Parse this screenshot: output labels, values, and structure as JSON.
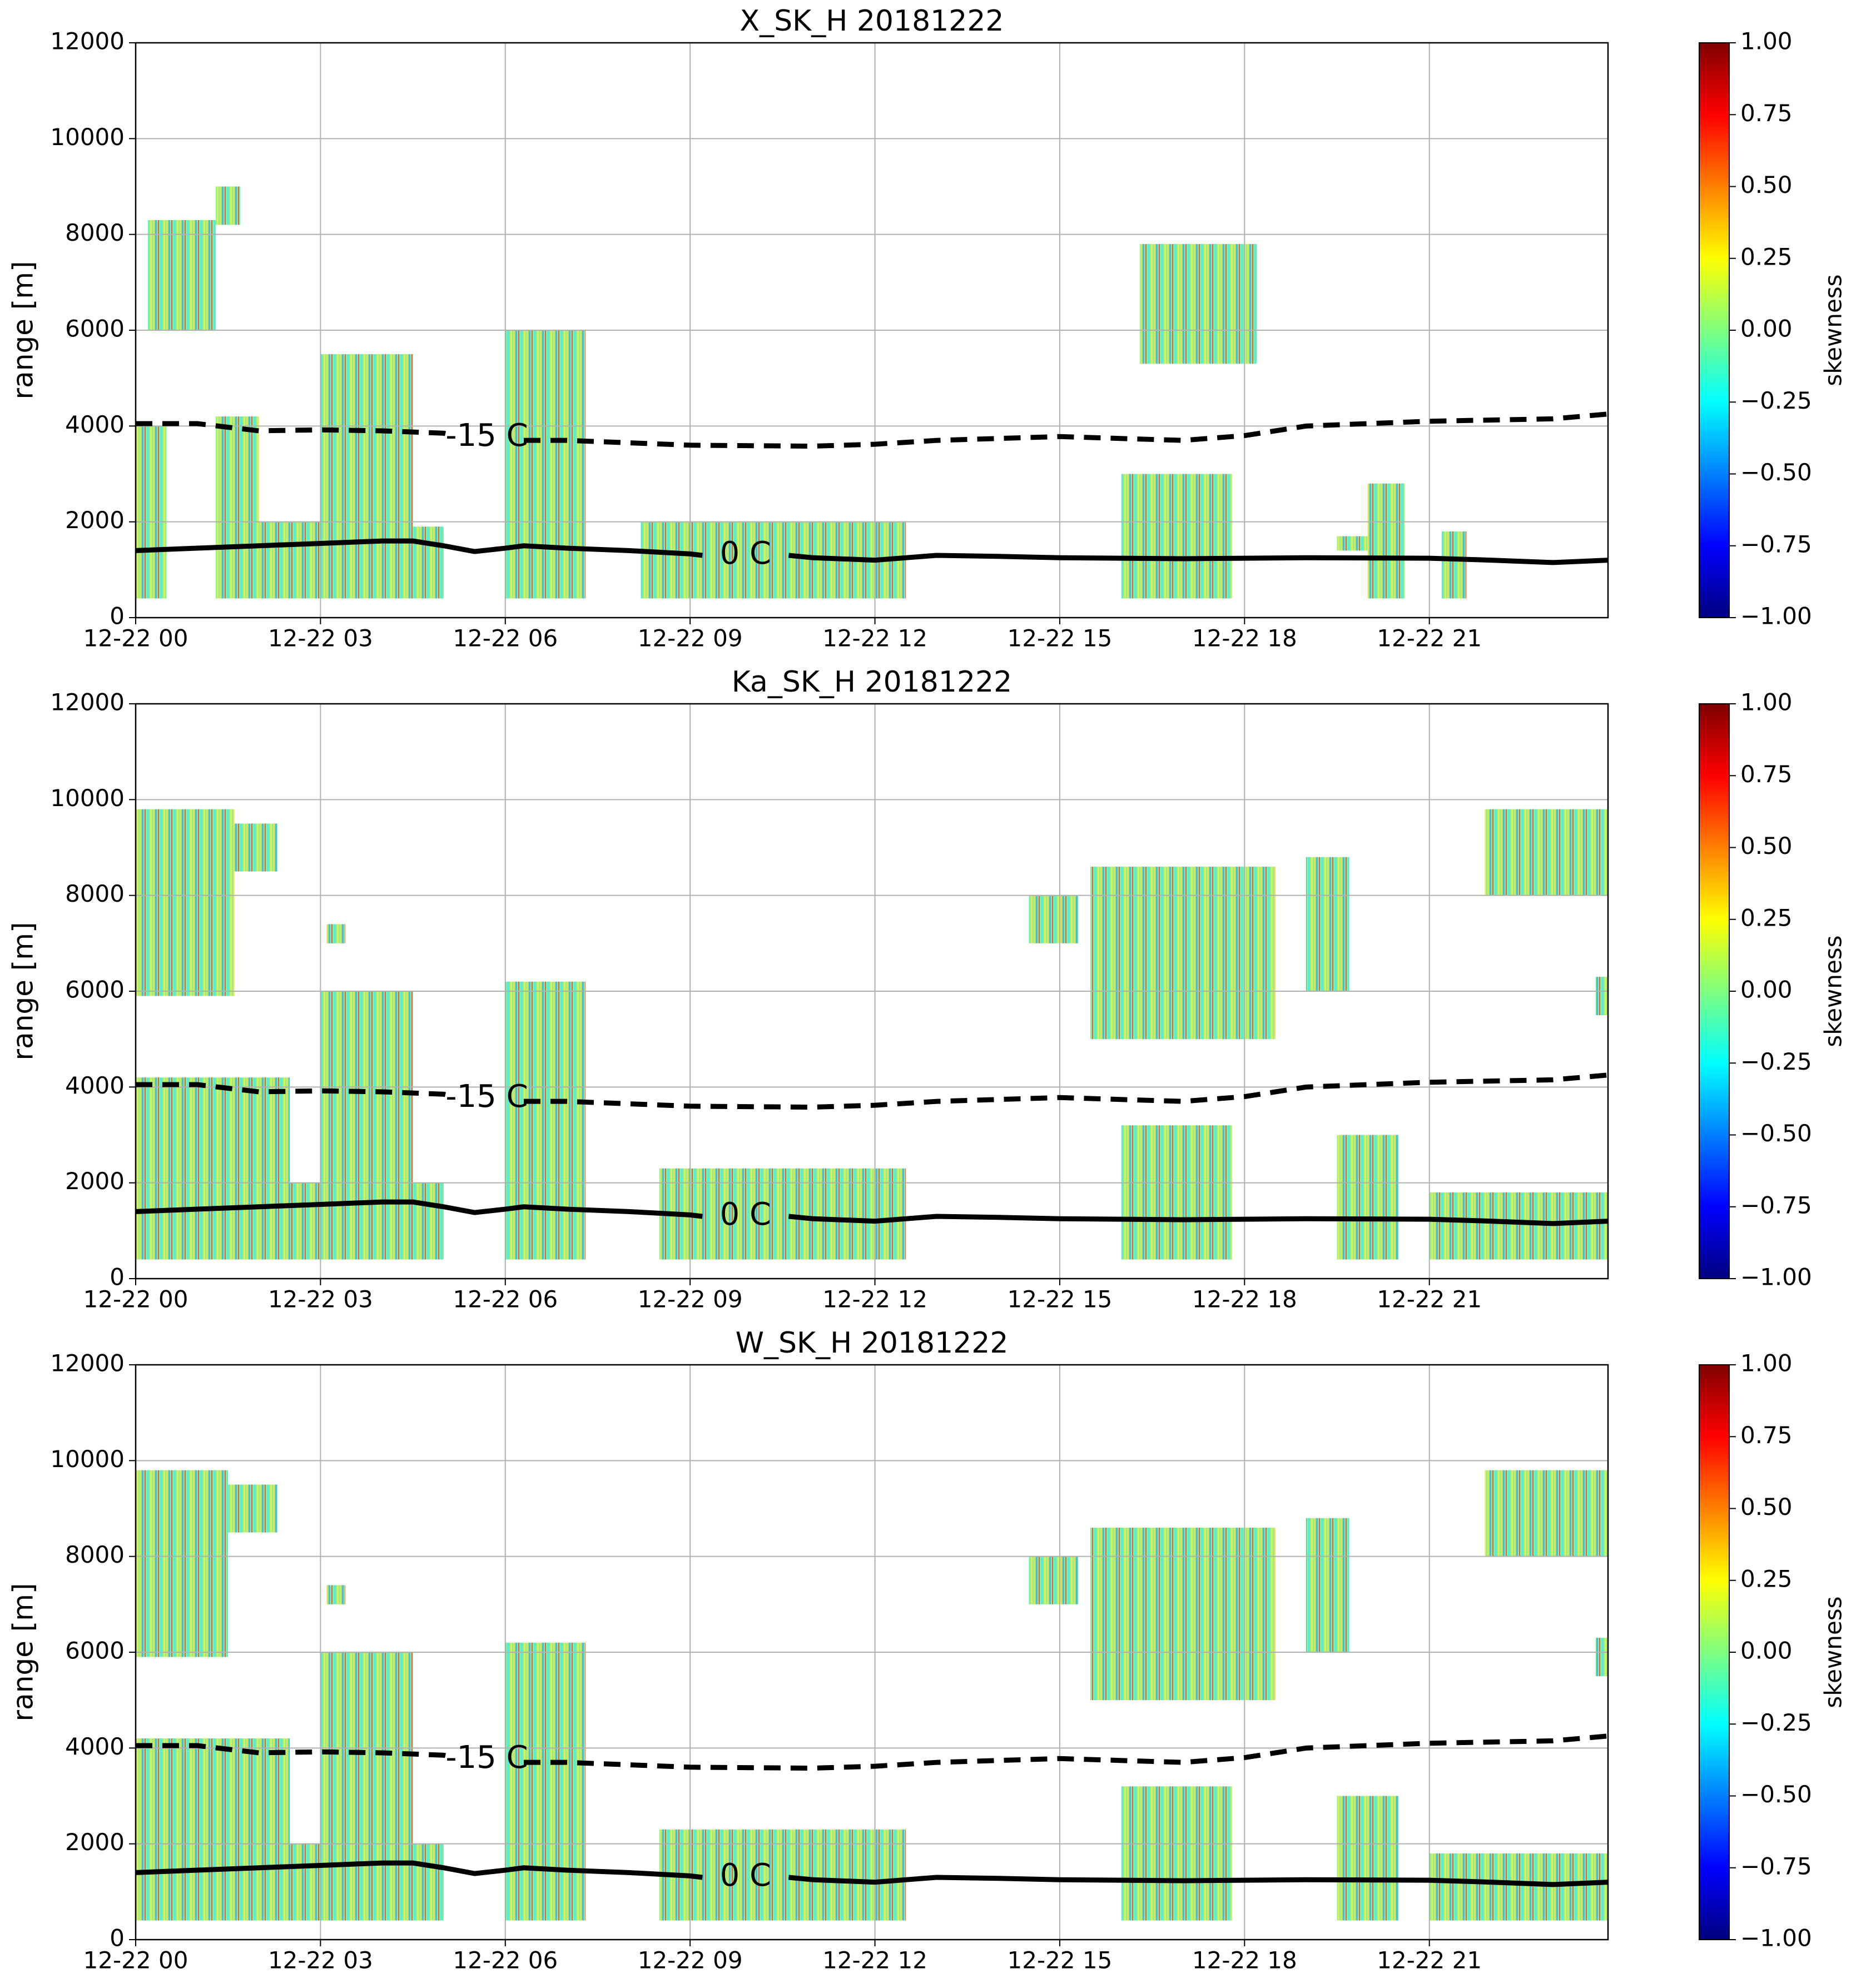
{
  "chart_data": [
    {
      "type": "radar-heatmap",
      "title": "X_SK_H 20181222",
      "ylabel": "range [m]",
      "xlim": [
        0,
        23.9
      ],
      "xticks": [
        {
          "value": 0,
          "label": "12-22 00"
        },
        {
          "value": 3,
          "label": "12-22 03"
        },
        {
          "value": 6,
          "label": "12-22 06"
        },
        {
          "value": 9,
          "label": "12-22 09"
        },
        {
          "value": 12,
          "label": "12-22 12"
        },
        {
          "value": 15,
          "label": "12-22 15"
        },
        {
          "value": 18,
          "label": "12-22 18"
        },
        {
          "value": 21,
          "label": "12-22 21"
        }
      ],
      "ylim": [
        0,
        12000
      ],
      "yticks": [
        0,
        2000,
        4000,
        6000,
        8000,
        10000,
        12000
      ],
      "grid": true,
      "echoes": [
        {
          "x": [
            0.2,
            1.3
          ],
          "y": [
            6000,
            8300
          ]
        },
        {
          "x": [
            1.3,
            1.7
          ],
          "y": [
            8200,
            9000
          ]
        },
        {
          "x": [
            0,
            0.5
          ],
          "y": [
            400,
            4000
          ]
        },
        {
          "x": [
            1.3,
            2
          ],
          "y": [
            400,
            4200
          ]
        },
        {
          "x": [
            2,
            4.5
          ],
          "y": [
            400,
            2000
          ]
        },
        {
          "x": [
            3,
            4.5
          ],
          "y": [
            2000,
            5500
          ]
        },
        {
          "x": [
            4.5,
            5
          ],
          "y": [
            400,
            1900
          ]
        },
        {
          "x": [
            6,
            7.3
          ],
          "y": [
            400,
            6000
          ]
        },
        {
          "x": [
            8.2,
            12.5
          ],
          "y": [
            400,
            2000
          ]
        },
        {
          "x": [
            16.3,
            18.2
          ],
          "y": [
            5300,
            7800
          ]
        },
        {
          "x": [
            16,
            17.8
          ],
          "y": [
            400,
            3000
          ]
        },
        {
          "x": [
            19.5,
            20
          ],
          "y": [
            1400,
            1700
          ]
        },
        {
          "x": [
            20,
            20.6
          ],
          "y": [
            400,
            2800
          ]
        },
        {
          "x": [
            21.2,
            21.6
          ],
          "y": [
            400,
            1800
          ]
        }
      ],
      "lines": [
        {
          "label": "0 C",
          "style": "solid",
          "x": [
            0,
            1,
            2,
            3,
            4,
            4.5,
            5,
            5.5,
            6,
            6.3,
            7,
            8,
            9,
            9.2,
            9.9,
            10.6,
            11,
            12,
            13,
            14,
            15,
            17,
            19,
            21,
            22,
            23,
            23.9
          ],
          "values": [
            1400,
            1450,
            1500,
            1550,
            1600,
            1600,
            1500,
            1380,
            1450,
            1500,
            1450,
            1400,
            1330,
            1300,
            null,
            1300,
            1250,
            1200,
            1300,
            1280,
            1250,
            1230,
            1250,
            1240,
            1200,
            1150,
            1200
          ]
        },
        {
          "label": "-15 C",
          "style": "dashed",
          "x": [
            0,
            1,
            2,
            3,
            4,
            5,
            5.1,
            5.7,
            6.3,
            7,
            9,
            11,
            12,
            13,
            15,
            17,
            18,
            19,
            21,
            23,
            23.9
          ],
          "values": [
            4050,
            4050,
            3900,
            3920,
            3900,
            3850,
            3820,
            null,
            3700,
            3700,
            3600,
            3580,
            3620,
            3700,
            3780,
            3700,
            3800,
            4000,
            4100,
            4150,
            4250
          ]
        }
      ],
      "colorbar": {
        "label": "skewness",
        "colormap": "jet",
        "lim": [
          -1,
          1
        ],
        "ticks": [
          {
            "value": 1,
            "label": "1.00"
          },
          {
            "value": 0.75,
            "label": "0.75"
          },
          {
            "value": 0.5,
            "label": "0.50"
          },
          {
            "value": 0.25,
            "label": "0.25"
          },
          {
            "value": 0,
            "label": "0.00"
          },
          {
            "value": -0.25,
            "label": "−0.25"
          },
          {
            "value": -0.5,
            "label": "−0.50"
          },
          {
            "value": -0.75,
            "label": "−0.75"
          },
          {
            "value": -1,
            "label": "−1.00"
          }
        ]
      }
    },
    {
      "type": "radar-heatmap",
      "title": "Ka_SK_H 20181222",
      "ylabel": "range [m]",
      "xlim": [
        0,
        23.9
      ],
      "xticks": [
        {
          "value": 0,
          "label": "12-22 00"
        },
        {
          "value": 3,
          "label": "12-22 03"
        },
        {
          "value": 6,
          "label": "12-22 06"
        },
        {
          "value": 9,
          "label": "12-22 09"
        },
        {
          "value": 12,
          "label": "12-22 12"
        },
        {
          "value": 15,
          "label": "12-22 15"
        },
        {
          "value": 18,
          "label": "12-22 18"
        },
        {
          "value": 21,
          "label": "12-22 21"
        }
      ],
      "ylim": [
        0,
        12000
      ],
      "yticks": [
        0,
        2000,
        4000,
        6000,
        8000,
        10000,
        12000
      ],
      "grid": true,
      "echoes": [
        {
          "x": [
            0,
            1.6
          ],
          "y": [
            5900,
            9800
          ]
        },
        {
          "x": [
            1.6,
            2.3
          ],
          "y": [
            8500,
            9500
          ]
        },
        {
          "x": [
            3.1,
            3.4
          ],
          "y": [
            7000,
            7400
          ]
        },
        {
          "x": [
            0,
            2.5
          ],
          "y": [
            400,
            4200
          ]
        },
        {
          "x": [
            2.5,
            5
          ],
          "y": [
            400,
            2000
          ]
        },
        {
          "x": [
            3,
            4.5
          ],
          "y": [
            2000,
            6000
          ]
        },
        {
          "x": [
            6,
            7.3
          ],
          "y": [
            400,
            6200
          ]
        },
        {
          "x": [
            8.5,
            12.5
          ],
          "y": [
            400,
            2300
          ]
        },
        {
          "x": [
            14.5,
            15.3
          ],
          "y": [
            7000,
            8000
          ]
        },
        {
          "x": [
            15.5,
            18.5
          ],
          "y": [
            5000,
            8600
          ]
        },
        {
          "x": [
            19,
            19.7
          ],
          "y": [
            6000,
            8800
          ]
        },
        {
          "x": [
            16,
            17.8
          ],
          "y": [
            400,
            3200
          ]
        },
        {
          "x": [
            19.5,
            20.5
          ],
          "y": [
            400,
            3000
          ]
        },
        {
          "x": [
            21,
            23.9
          ],
          "y": [
            400,
            1800
          ]
        },
        {
          "x": [
            21.9,
            23.9
          ],
          "y": [
            8000,
            9800
          ]
        },
        {
          "x": [
            23.7,
            23.9
          ],
          "y": [
            5500,
            6300
          ]
        }
      ],
      "lines": [
        {
          "label": "0 C",
          "style": "solid",
          "x": [
            0,
            1,
            2,
            3,
            4,
            4.5,
            5,
            5.5,
            6,
            6.3,
            7,
            8,
            9,
            9.2,
            9.9,
            10.6,
            11,
            12,
            13,
            14,
            15,
            17,
            19,
            21,
            22,
            23,
            23.9
          ],
          "values": [
            1400,
            1450,
            1500,
            1550,
            1600,
            1600,
            1500,
            1380,
            1450,
            1500,
            1450,
            1400,
            1330,
            1300,
            null,
            1300,
            1250,
            1200,
            1300,
            1280,
            1250,
            1230,
            1250,
            1240,
            1200,
            1150,
            1200
          ]
        },
        {
          "label": "-15 C",
          "style": "dashed",
          "x": [
            0,
            1,
            2,
            3,
            4,
            5,
            5.1,
            5.7,
            6.3,
            7,
            9,
            11,
            12,
            13,
            15,
            17,
            18,
            19,
            21,
            23,
            23.9
          ],
          "values": [
            4050,
            4050,
            3900,
            3920,
            3900,
            3850,
            3820,
            null,
            3700,
            3700,
            3600,
            3580,
            3620,
            3700,
            3780,
            3700,
            3800,
            4000,
            4100,
            4150,
            4250
          ]
        }
      ],
      "colorbar": {
        "label": "skewness",
        "colormap": "jet",
        "lim": [
          -1,
          1
        ],
        "ticks": [
          {
            "value": 1,
            "label": "1.00"
          },
          {
            "value": 0.75,
            "label": "0.75"
          },
          {
            "value": 0.5,
            "label": "0.50"
          },
          {
            "value": 0.25,
            "label": "0.25"
          },
          {
            "value": 0,
            "label": "0.00"
          },
          {
            "value": -0.25,
            "label": "−0.25"
          },
          {
            "value": -0.5,
            "label": "−0.50"
          },
          {
            "value": -0.75,
            "label": "−0.75"
          },
          {
            "value": -1,
            "label": "−1.00"
          }
        ]
      }
    },
    {
      "type": "radar-heatmap",
      "title": "W_SK_H 20181222",
      "ylabel": "range [m]",
      "xlim": [
        0,
        23.9
      ],
      "xticks": [
        {
          "value": 0,
          "label": "12-22 00"
        },
        {
          "value": 3,
          "label": "12-22 03"
        },
        {
          "value": 6,
          "label": "12-22 06"
        },
        {
          "value": 9,
          "label": "12-22 09"
        },
        {
          "value": 12,
          "label": "12-22 12"
        },
        {
          "value": 15,
          "label": "12-22 15"
        },
        {
          "value": 18,
          "label": "12-22 18"
        },
        {
          "value": 21,
          "label": "12-22 21"
        }
      ],
      "ylim": [
        0,
        12000
      ],
      "yticks": [
        0,
        2000,
        4000,
        6000,
        8000,
        10000,
        12000
      ],
      "grid": true,
      "echoes": [
        {
          "x": [
            0,
            1.5
          ],
          "y": [
            5900,
            9800
          ]
        },
        {
          "x": [
            1.5,
            2.3
          ],
          "y": [
            8500,
            9500
          ]
        },
        {
          "x": [
            3.1,
            3.4
          ],
          "y": [
            7000,
            7400
          ]
        },
        {
          "x": [
            0,
            2.5
          ],
          "y": [
            400,
            4200
          ]
        },
        {
          "x": [
            2.5,
            5
          ],
          "y": [
            400,
            2000
          ]
        },
        {
          "x": [
            3,
            4.5
          ],
          "y": [
            2000,
            6000
          ]
        },
        {
          "x": [
            6,
            7.3
          ],
          "y": [
            400,
            6200
          ]
        },
        {
          "x": [
            8.5,
            12.5
          ],
          "y": [
            400,
            2300
          ]
        },
        {
          "x": [
            14.5,
            15.3
          ],
          "y": [
            7000,
            8000
          ]
        },
        {
          "x": [
            15.5,
            18.5
          ],
          "y": [
            5000,
            8600
          ]
        },
        {
          "x": [
            19,
            19.7
          ],
          "y": [
            6000,
            8800
          ]
        },
        {
          "x": [
            16,
            17.8
          ],
          "y": [
            400,
            3200
          ]
        },
        {
          "x": [
            19.5,
            20.5
          ],
          "y": [
            400,
            3000
          ]
        },
        {
          "x": [
            21,
            23.9
          ],
          "y": [
            400,
            1800
          ]
        },
        {
          "x": [
            21.9,
            23.9
          ],
          "y": [
            8000,
            9800
          ]
        },
        {
          "x": [
            23.7,
            23.9
          ],
          "y": [
            5500,
            6300
          ]
        }
      ],
      "lines": [
        {
          "label": "0 C",
          "style": "solid",
          "x": [
            0,
            1,
            2,
            3,
            4,
            4.5,
            5,
            5.5,
            6,
            6.3,
            7,
            8,
            9,
            9.2,
            9.9,
            10.6,
            11,
            12,
            13,
            14,
            15,
            17,
            19,
            21,
            22,
            23,
            23.9
          ],
          "values": [
            1400,
            1450,
            1500,
            1550,
            1600,
            1600,
            1500,
            1380,
            1450,
            1500,
            1450,
            1400,
            1330,
            1300,
            null,
            1300,
            1250,
            1200,
            1300,
            1280,
            1250,
            1230,
            1250,
            1240,
            1200,
            1150,
            1200
          ]
        },
        {
          "label": "-15 C",
          "style": "dashed",
          "x": [
            0,
            1,
            2,
            3,
            4,
            5,
            5.1,
            5.7,
            6.3,
            7,
            9,
            11,
            12,
            13,
            15,
            17,
            18,
            19,
            21,
            23,
            23.9
          ],
          "values": [
            4050,
            4050,
            3900,
            3920,
            3900,
            3850,
            3820,
            null,
            3700,
            3700,
            3600,
            3580,
            3620,
            3700,
            3780,
            3700,
            3800,
            4000,
            4100,
            4150,
            4250
          ]
        }
      ],
      "colorbar": {
        "label": "skewness",
        "colormap": "jet",
        "lim": [
          -1,
          1
        ],
        "ticks": [
          {
            "value": 1,
            "label": "1.00"
          },
          {
            "value": 0.75,
            "label": "0.75"
          },
          {
            "value": 0.5,
            "label": "0.50"
          },
          {
            "value": 0.25,
            "label": "0.25"
          },
          {
            "value": 0,
            "label": "0.00"
          },
          {
            "value": -0.25,
            "label": "−0.25"
          },
          {
            "value": -0.5,
            "label": "−0.50"
          },
          {
            "value": -0.75,
            "label": "−0.75"
          },
          {
            "value": -1,
            "label": "−1.00"
          }
        ]
      }
    }
  ]
}
